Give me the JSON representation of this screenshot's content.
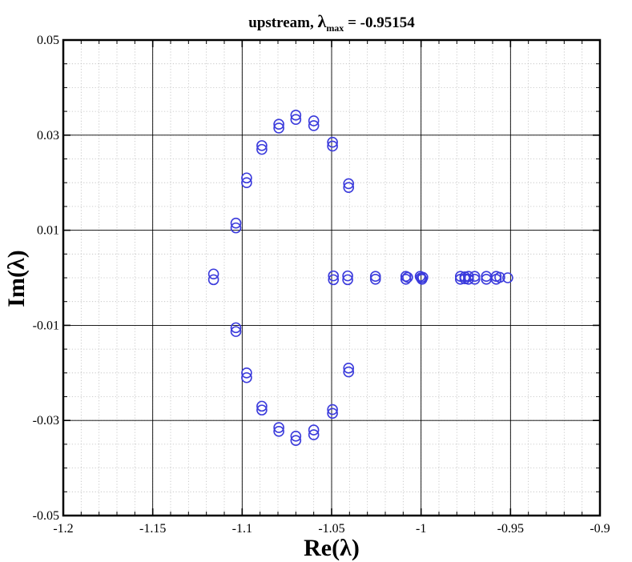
{
  "chart_data": {
    "type": "scatter",
    "title": {
      "prefix": "upstream,  ",
      "symbol": "λ",
      "subscript": "max",
      "suffix": " = -0.95154"
    },
    "xlabel": "Re(λ)",
    "ylabel": "Im(λ)",
    "xlim": [
      -1.2,
      -0.9
    ],
    "ylim": [
      -0.05,
      0.05
    ],
    "x_ticks": [
      -1.2,
      -1.15,
      -1.1,
      -1.05,
      -1,
      -0.95,
      -0.9
    ],
    "x_tick_labels": [
      "-1.2",
      "-1.15",
      "-1.1",
      "-1.05",
      "-1",
      "-0.95",
      "-0.9"
    ],
    "y_ticks": [
      -0.05,
      -0.03,
      -0.01,
      0.01,
      0.03,
      0.05
    ],
    "y_tick_labels": [
      "-0.05",
      "-0.03",
      "-0.01",
      "0.01",
      "0.03",
      "0.05"
    ],
    "x_major_grid": [
      -1.15,
      -1.1,
      -1.05,
      -1,
      -0.95
    ],
    "y_major_grid": [
      -0.03,
      -0.01,
      0.01,
      0.03
    ],
    "x_minor_step": 0.01,
    "y_minor_step": 0.005,
    "grid": true,
    "marker": "open-circle",
    "marker_color": "#3b3bdc",
    "series": [
      {
        "points": [
          [
            -1.116,
            0.0008
          ],
          [
            -1.116,
            -0.0004
          ],
          [
            -1.1035,
            0.0115
          ],
          [
            -1.1035,
            0.0105
          ],
          [
            -1.0975,
            0.021
          ],
          [
            -1.0975,
            0.02
          ],
          [
            -1.089,
            0.0278
          ],
          [
            -1.089,
            0.027
          ],
          [
            -1.0795,
            0.0323
          ],
          [
            -1.0795,
            0.0315
          ],
          [
            -1.07,
            0.0342
          ],
          [
            -1.07,
            0.0333
          ],
          [
            -1.06,
            0.033
          ],
          [
            -1.06,
            0.032
          ],
          [
            -1.0495,
            0.0285
          ],
          [
            -1.0495,
            0.0277
          ],
          [
            -1.0405,
            0.0198
          ],
          [
            -1.0405,
            0.019
          ],
          [
            -1.1035,
            -0.0105
          ],
          [
            -1.1035,
            -0.0113
          ],
          [
            -1.0975,
            -0.02
          ],
          [
            -1.0975,
            -0.021
          ],
          [
            -1.089,
            -0.027
          ],
          [
            -1.089,
            -0.0278
          ],
          [
            -1.0795,
            -0.0315
          ],
          [
            -1.0795,
            -0.0323
          ],
          [
            -1.07,
            -0.0333
          ],
          [
            -1.07,
            -0.0342
          ],
          [
            -1.06,
            -0.032
          ],
          [
            -1.06,
            -0.033
          ],
          [
            -1.0495,
            -0.0277
          ],
          [
            -1.0495,
            -0.0285
          ],
          [
            -1.0405,
            -0.019
          ],
          [
            -1.0405,
            -0.0198
          ],
          [
            -1.049,
            0.0004
          ],
          [
            -1.049,
            -0.0004
          ],
          [
            -1.041,
            0.0004
          ],
          [
            -1.041,
            -0.0004
          ],
          [
            -1.0255,
            0.0003
          ],
          [
            -1.0255,
            -0.0003
          ],
          [
            -1.0085,
            0.0003
          ],
          [
            -1.0085,
            -0.0003
          ],
          [
            -1.0075,
            0.0001
          ],
          [
            -1.0005,
            0.0003
          ],
          [
            -1.0,
            0.0
          ],
          [
            -0.9995,
            -0.0003
          ],
          [
            -0.999,
            0.0001
          ],
          [
            -0.978,
            0.0003
          ],
          [
            -0.978,
            -0.0003
          ],
          [
            -0.9755,
            0.0002
          ],
          [
            -0.9755,
            -0.0002
          ],
          [
            -0.9735,
            0.0003
          ],
          [
            -0.9735,
            -0.0003
          ],
          [
            -0.97,
            0.0003
          ],
          [
            -0.97,
            -0.0003
          ],
          [
            -0.9635,
            0.0003
          ],
          [
            -0.9635,
            -0.0003
          ],
          [
            -0.958,
            0.0003
          ],
          [
            -0.958,
            -0.0003
          ],
          [
            -0.956,
            0.0001
          ],
          [
            -0.95154,
            0.0
          ]
        ]
      }
    ]
  }
}
